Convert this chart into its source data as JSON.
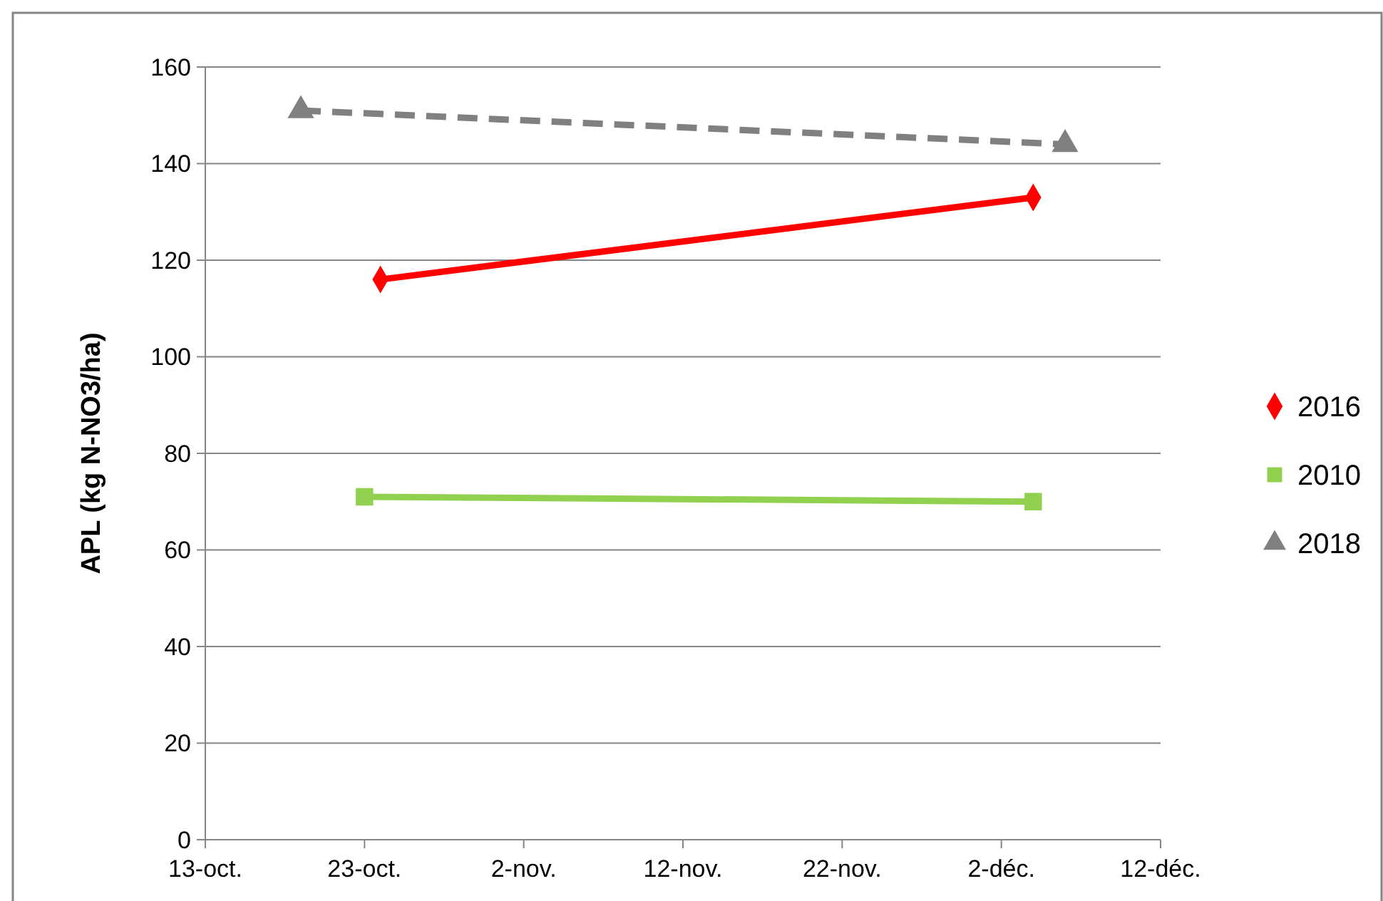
{
  "chart_data": {
    "type": "line",
    "ylabel": "APL (kg N-NO3/ha)",
    "xlim": [
      "--10-13",
      "--12-12"
    ],
    "xticks": [
      {
        "value": "--10-13",
        "label": "13-oct."
      },
      {
        "value": "--10-23",
        "label": "23-oct."
      },
      {
        "value": "--11-02",
        "label": "2-nov."
      },
      {
        "value": "--11-12",
        "label": "12-nov."
      },
      {
        "value": "--11-22",
        "label": "22-nov."
      },
      {
        "value": "--12-02",
        "label": "2-déc."
      },
      {
        "value": "--12-12",
        "label": "12-déc."
      }
    ],
    "ylim": [
      0,
      160
    ],
    "yticks": [
      0,
      20,
      40,
      60,
      80,
      100,
      120,
      140,
      160
    ],
    "grid": "y",
    "legend": "right",
    "series": [
      {
        "name": "2016",
        "color": "#ff0000",
        "marker": "diamond",
        "line_style": "solid",
        "x": [
          "--10-24",
          "--12-04"
        ],
        "values": [
          116,
          133
        ]
      },
      {
        "name": "2010",
        "color": "#92d050",
        "marker": "square",
        "line_style": "solid",
        "x": [
          "--10-23",
          "--12-04"
        ],
        "values": [
          71,
          70
        ]
      },
      {
        "name": "2018",
        "color": "#808080",
        "marker": "triangle",
        "line_style": "dashed",
        "x": [
          "--10-19",
          "--12-06"
        ],
        "values": [
          151,
          144
        ]
      }
    ]
  }
}
